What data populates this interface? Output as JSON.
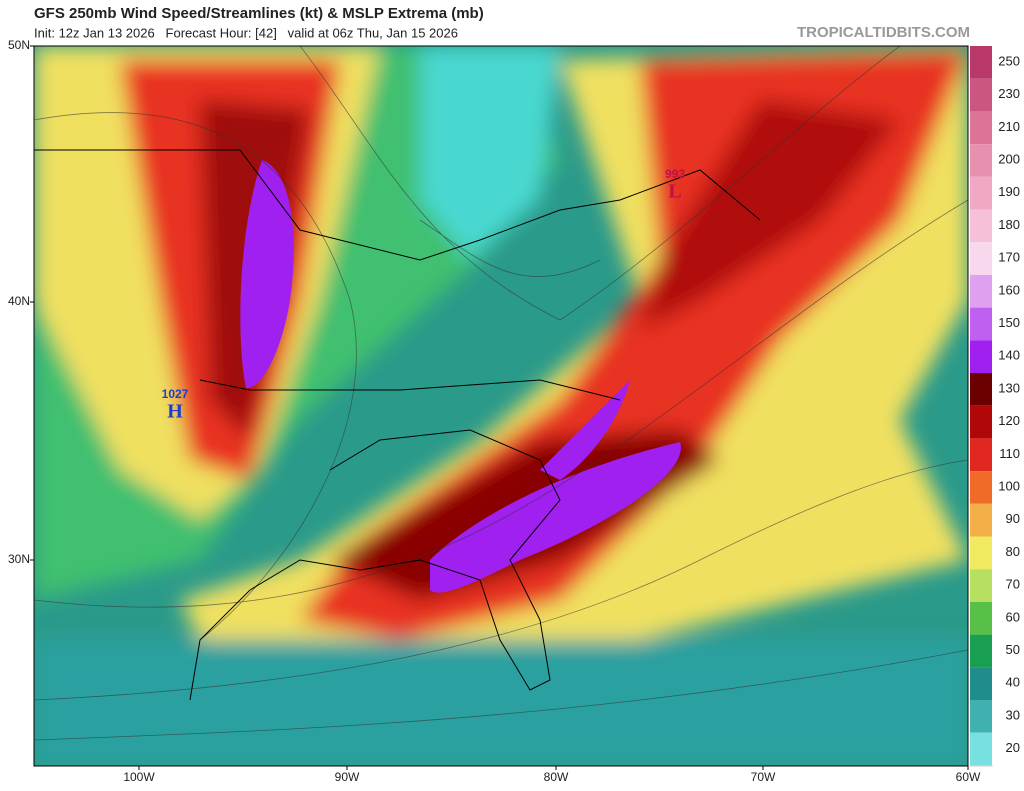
{
  "header": {
    "title": "GFS 250mb Wind Speed/Streamlines (kt) & MSLP Extrema (mb)",
    "subtitle": "Init: 12z Jan 13 2026   Forecast Hour: [42]   valid at 06z Thu, Jan 15 2026",
    "credit": "TROPICALTIDBITS.COM"
  },
  "latitude_labels": [
    "50N",
    "40N",
    "30N"
  ],
  "longitude_labels": [
    "100W",
    "90W",
    "80W",
    "70W",
    "60W"
  ],
  "pressure_centers": [
    {
      "type": "H",
      "value": "1027"
    },
    {
      "type": "L",
      "value": "993"
    }
  ],
  "colorbar": {
    "labels": [
      "250",
      "230",
      "210",
      "200",
      "190",
      "180",
      "170",
      "160",
      "150",
      "140",
      "130",
      "120",
      "110",
      "100",
      "90",
      "80",
      "70",
      "60",
      "50",
      "40",
      "30",
      "20"
    ],
    "colors": [
      "#b8386a",
      "#cc5682",
      "#dc7498",
      "#e890b0",
      "#f0a8c4",
      "#f6c0d8",
      "#f8d8ec",
      "#e0a0f0",
      "#c060f0",
      "#a020f0",
      "#6a0000",
      "#b00808",
      "#e02820",
      "#f06a28",
      "#f4b048",
      "#f0ea60",
      "#b8e060",
      "#58c048",
      "#18a050",
      "#208c8c",
      "#40b0b0",
      "#78e0e0"
    ]
  }
}
